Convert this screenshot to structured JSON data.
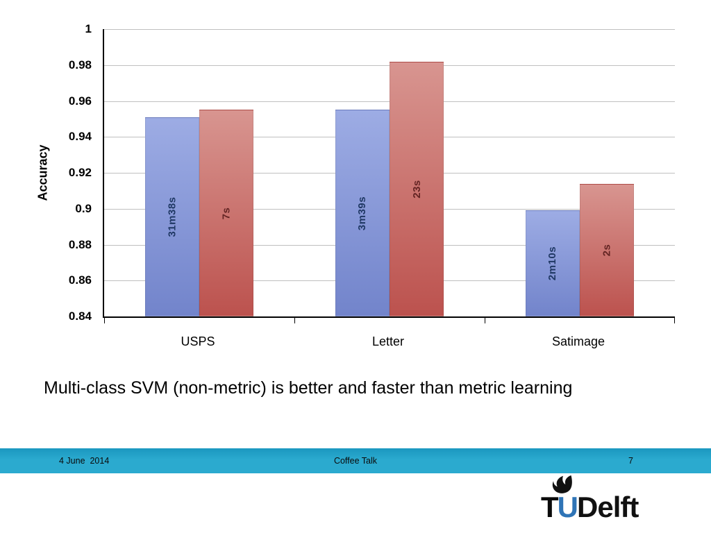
{
  "chart_data": {
    "type": "bar",
    "title": "",
    "ylabel": "Accuracy",
    "ylim": [
      0.84,
      1.0
    ],
    "ytick_labels": [
      "1",
      "0.98",
      "0.96",
      "0.94",
      "0.92",
      "0.9",
      "0.88",
      "0.86",
      "0.84"
    ],
    "grid": true,
    "legend": "none",
    "categories": [
      "USPS",
      "Letter",
      "Satimage"
    ],
    "series": [
      {
        "id": "metric-learning-blue",
        "values": [
          0.951,
          0.955,
          0.899
        ],
        "bar_labels": [
          "31m38s",
          "3m39s",
          "2m10s"
        ],
        "color_top": "#9dace4",
        "color_bottom": "#7284cb",
        "label_color": "#1f3864"
      },
      {
        "id": "multiclass-svm-red",
        "values": [
          0.955,
          0.982,
          0.914
        ],
        "bar_labels": [
          "7s",
          "23s",
          "2s"
        ],
        "color_top": "#d89590",
        "color_bottom": "#bc524e",
        "label_color": "#632423"
      }
    ]
  },
  "caption": "Multi-class SVM (non-metric) is better and faster than metric learning",
  "footer": {
    "date": "4 June  2014",
    "title": "Coffee Talk",
    "page": "7",
    "bar_color": "#2baacf"
  },
  "logo": {
    "t": "T",
    "u": "U",
    "delft": "Delft",
    "icon": "flame-icon",
    "u_color": "#2f74b6"
  }
}
